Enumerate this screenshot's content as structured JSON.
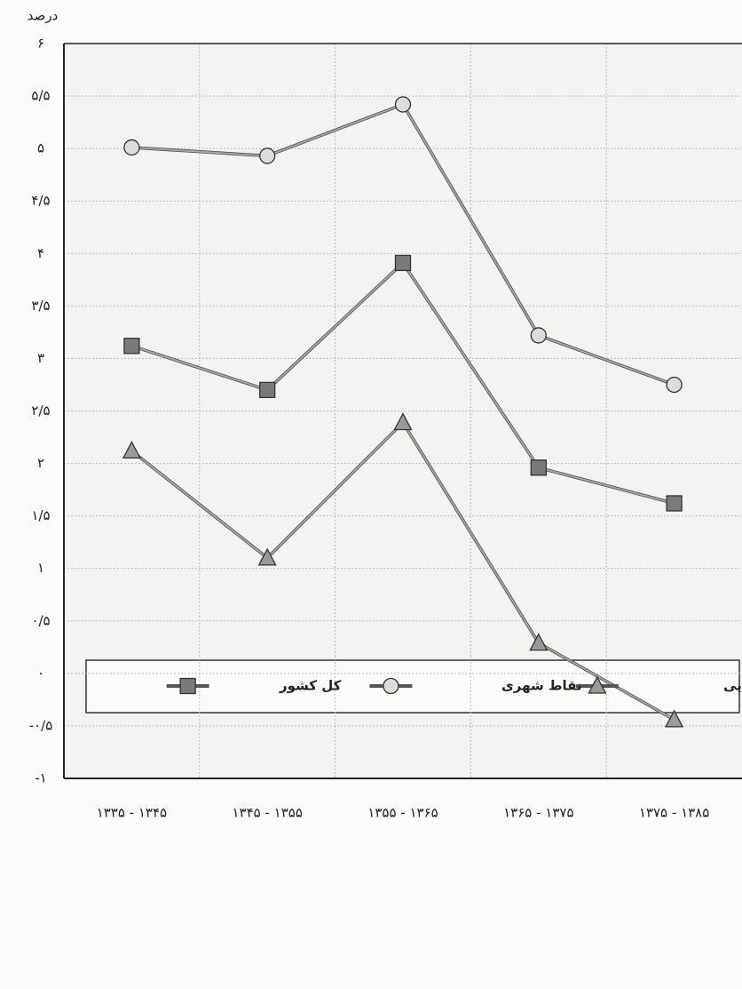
{
  "chart_data": {
    "type": "line",
    "y_label": "درصد",
    "categories": [
      "۱۳۳۵ - ۱۳۴۵",
      "۱۳۴۵ - ۱۳۵۵",
      "۱۳۵۵ - ۱۳۶۵",
      "۱۳۶۵ - ۱۳۷۵",
      "۱۳۷۵ - ۱۳۸۵"
    ],
    "series": [
      {
        "name": "نقاط روستایی",
        "color": "#9a9a9a",
        "marker": "triangle",
        "values": [
          2.12,
          1.1,
          2.39,
          0.29,
          -0.44
        ]
      },
      {
        "name": "نقاط شهری",
        "color": "#dcdcdc",
        "marker": "circle",
        "values": [
          5.01,
          4.93,
          5.42,
          3.22,
          2.75
        ]
      },
      {
        "name": "کل کشور",
        "color": "#7a7a7a",
        "marker": "square",
        "values": [
          3.12,
          2.7,
          3.91,
          1.96,
          1.62
        ]
      }
    ],
    "ylim": [
      -1,
      6
    ],
    "yticks": [
      {
        "value": -1,
        "label": "-۱"
      },
      {
        "value": -0.5,
        "label": "-۰/۵"
      },
      {
        "value": 0,
        "label": "۰"
      },
      {
        "value": 0.5,
        "label": "۰/۵"
      },
      {
        "value": 1,
        "label": "۱"
      },
      {
        "value": 1.5,
        "label": "۱/۵"
      },
      {
        "value": 2,
        "label": "۲"
      },
      {
        "value": 2.5,
        "label": "۲/۵"
      },
      {
        "value": 3,
        "label": "۳"
      },
      {
        "value": 3.5,
        "label": "۳/۵"
      },
      {
        "value": 4,
        "label": "۴"
      },
      {
        "value": 4.5,
        "label": "۴/۵"
      },
      {
        "value": 5,
        "label": "۵"
      },
      {
        "value": 5.5,
        "label": "۵/۵"
      },
      {
        "value": 6,
        "label": "۶"
      }
    ],
    "grid": true
  }
}
